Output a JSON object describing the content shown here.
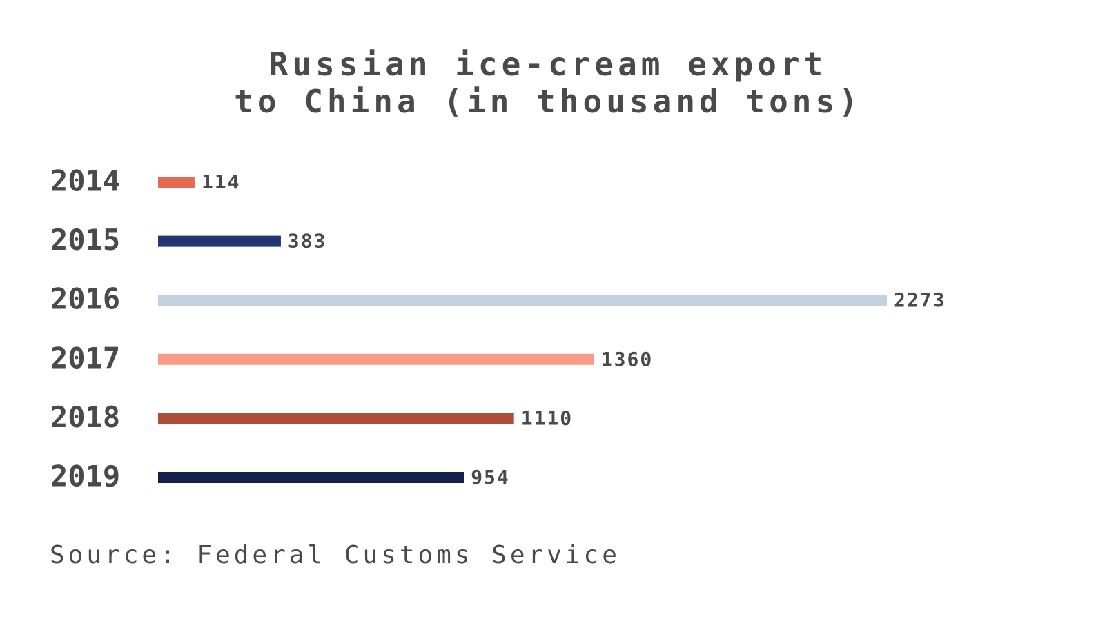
{
  "chart_data": {
    "type": "bar",
    "orientation": "horizontal",
    "title": "Russian ice-cream export\nto China (in thousand tons)",
    "categories": [
      "2014",
      "2015",
      "2016",
      "2017",
      "2018",
      "2019"
    ],
    "values": [
      114,
      383,
      2273,
      1360,
      1110,
      954
    ],
    "colors": [
      "#e36b50",
      "#22386e",
      "#c3d0de",
      "#f89a86",
      "#ad4e3a",
      "#14204a"
    ],
    "source": "Source: Federal Customs Service"
  }
}
